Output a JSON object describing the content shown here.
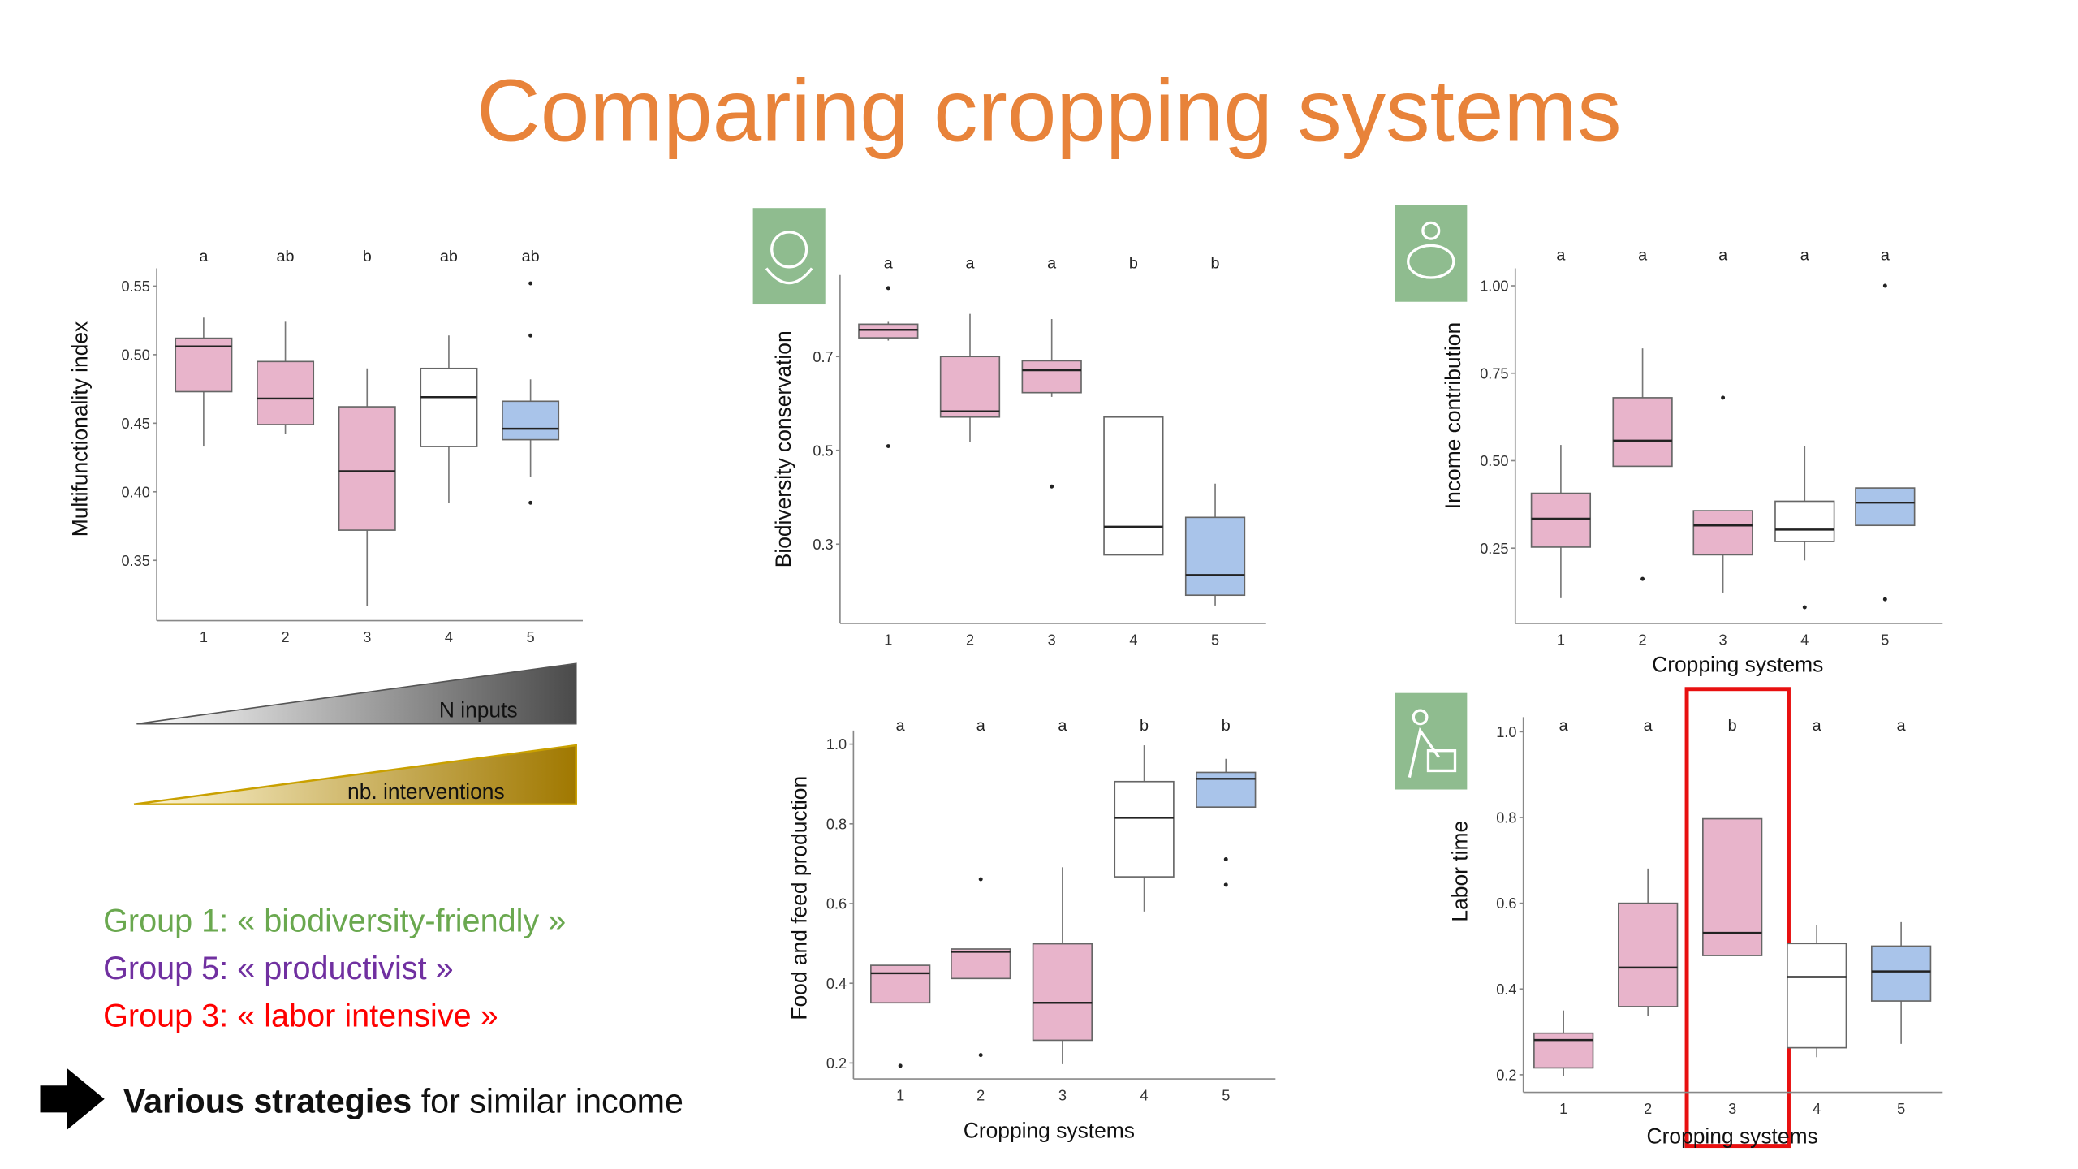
{
  "title": "Comparing cropping systems",
  "trends": [
    "N inputs",
    "nb. interventions"
  ],
  "groups": [
    {
      "text": "Group 1: « biodiversity-friendly »",
      "color": "#6aa84f"
    },
    {
      "text": "Group 5: « productivist »",
      "color": "#7030a0"
    },
    {
      "text": "Group 3: « labor intensive »",
      "color": "#ff0000"
    }
  ],
  "conclusion": {
    "bold": "Various strategies",
    "rest": " for similar income"
  },
  "chart_data": [
    {
      "type": "box",
      "y_label": "Multifunctionality index",
      "categories": [
        "1",
        "2",
        "3",
        "4",
        "5"
      ],
      "letters": [
        "a",
        "ab",
        "b",
        "ab",
        "ab"
      ],
      "ylim": [
        0.306,
        0.563
      ],
      "yticks": [
        0.35,
        {
          "value": 0.4,
          "label": "0.40"
        },
        0.45,
        {
          "value": 0.5,
          "label": "0.50"
        },
        0.55
      ],
      "boxes": [
        {
          "color": "#e8b4cb",
          "low": 0.433,
          "q1": 0.473,
          "median": 0.506,
          "q3": 0.512,
          "high": 0.527,
          "outliers": []
        },
        {
          "color": "#e8b4cb",
          "low": 0.442,
          "q1": 0.449,
          "median": 0.468,
          "q3": 0.495,
          "high": 0.524,
          "outliers": []
        },
        {
          "color": "#e8b4cb",
          "low": 0.317,
          "q1": 0.372,
          "median": 0.415,
          "q3": 0.462,
          "high": 0.49,
          "outliers": []
        },
        {
          "color": "#ffffff",
          "low": 0.392,
          "q1": 0.433,
          "median": 0.469,
          "q3": 0.49,
          "high": 0.514,
          "outliers": []
        },
        {
          "color": "#a9c4ea",
          "low": 0.411,
          "q1": 0.438,
          "median": 0.446,
          "q3": 0.466,
          "high": 0.482,
          "outliers": [
            0.552,
            0.514,
            0.392
          ]
        }
      ]
    },
    {
      "type": "box",
      "y_label": "Biodiversity conservation",
      "categories": [
        "1",
        "2",
        "3",
        "4",
        "5"
      ],
      "letters": [
        "a",
        "a",
        "a",
        "b",
        "b"
      ],
      "ylim": [
        0.131,
        0.874
      ],
      "yticks": [
        0.3,
        0.5,
        0.7
      ],
      "boxes": [
        {
          "color": "#e8b4cb",
          "low": 0.734,
          "q1": 0.74,
          "median": 0.757,
          "q3": 0.769,
          "high": 0.774,
          "outliers": [
            0.846,
            0.509
          ]
        },
        {
          "color": "#e8b4cb",
          "low": 0.517,
          "q1": 0.571,
          "median": 0.583,
          "q3": 0.7,
          "high": 0.791,
          "outliers": []
        },
        {
          "color": "#e8b4cb",
          "low": 0.614,
          "q1": 0.623,
          "median": 0.671,
          "q3": 0.691,
          "high": 0.78,
          "outliers": [
            0.423
          ]
        },
        {
          "color": "#ffffff",
          "low": 0.277,
          "q1": 0.277,
          "median": 0.337,
          "q3": 0.571,
          "high": 0.571,
          "outliers": []
        },
        {
          "color": "#a9c4ea",
          "low": 0.169,
          "q1": 0.191,
          "median": 0.234,
          "q3": 0.357,
          "high": 0.429,
          "outliers": []
        }
      ]
    },
    {
      "type": "box",
      "y_label": "Income contribution",
      "x_label": "Cropping systems",
      "categories": [
        "1",
        "2",
        "3",
        "4",
        "5"
      ],
      "letters": [
        "a",
        "a",
        "a",
        "a",
        "a"
      ],
      "ylim": [
        0.035,
        1.05
      ],
      "yticks": [
        0.25,
        {
          "value": 0.5,
          "label": "0.50"
        },
        0.75,
        {
          "value": 1,
          "label": "1.00"
        }
      ],
      "boxes": [
        {
          "color": "#e8b4cb",
          "low": 0.107,
          "q1": 0.253,
          "median": 0.334,
          "q3": 0.407,
          "high": 0.545,
          "outliers": []
        },
        {
          "color": "#e8b4cb",
          "low": 0.484,
          "q1": 0.484,
          "median": 0.557,
          "q3": 0.68,
          "high": 0.821,
          "outliers": [
            0.162
          ]
        },
        {
          "color": "#e8b4cb",
          "low": 0.123,
          "q1": 0.231,
          "median": 0.315,
          "q3": 0.357,
          "high": 0.357,
          "outliers": [
            0.68
          ]
        },
        {
          "color": "#ffffff",
          "low": 0.215,
          "q1": 0.269,
          "median": 0.303,
          "q3": 0.384,
          "high": 0.541,
          "outliers": [
            0.081
          ]
        },
        {
          "color": "#a9c4ea",
          "low": 0.315,
          "q1": 0.315,
          "median": 0.38,
          "q3": 0.422,
          "high": 0.422,
          "outliers": [
            1.0,
            0.104
          ]
        }
      ]
    },
    {
      "type": "box",
      "y_label": "Food and feed production",
      "x_label": "Cropping systems",
      "categories": [
        "1",
        "2",
        "3",
        "4",
        "5"
      ],
      "letters": [
        "a",
        "a",
        "a",
        "b",
        "b"
      ],
      "ylim": [
        0.16,
        1.034
      ],
      "yticks": [
        0.2,
        0.4,
        0.6,
        0.8,
        {
          "value": 1,
          "label": "1.0"
        }
      ],
      "boxes": [
        {
          "color": "#e8b4cb",
          "low": 0.351,
          "q1": 0.351,
          "median": 0.425,
          "q3": 0.445,
          "high": 0.445,
          "outliers": [
            0.193
          ]
        },
        {
          "color": "#e8b4cb",
          "low": 0.412,
          "q1": 0.412,
          "median": 0.479,
          "q3": 0.486,
          "high": 0.486,
          "outliers": [
            0.661,
            0.22
          ]
        },
        {
          "color": "#e8b4cb",
          "low": 0.197,
          "q1": 0.257,
          "median": 0.351,
          "q3": 0.499,
          "high": 0.691,
          "outliers": []
        },
        {
          "color": "#ffffff",
          "low": 0.58,
          "q1": 0.667,
          "median": 0.815,
          "q3": 0.906,
          "high": 0.997,
          "outliers": []
        },
        {
          "color": "#a9c4ea",
          "low": 0.842,
          "q1": 0.842,
          "median": 0.913,
          "q3": 0.929,
          "high": 0.963,
          "outliers": [
            0.711,
            0.647
          ]
        }
      ]
    },
    {
      "type": "box",
      "y_label": "Labor time",
      "x_label": "Cropping systems",
      "categories": [
        "1",
        "2",
        "3",
        "4",
        "5"
      ],
      "letters": [
        "a",
        "a",
        "b",
        "a",
        "a"
      ],
      "ylim": [
        0.159,
        1.034
      ],
      "yticks": [
        0.2,
        0.4,
        0.6,
        0.8,
        {
          "value": 1,
          "label": "1.0"
        }
      ],
      "boxes": [
        {
          "color": "#e8b4cb",
          "low": 0.197,
          "q1": 0.216,
          "median": 0.281,
          "q3": 0.297,
          "high": 0.35,
          "outliers": []
        },
        {
          "color": "#e8b4cb",
          "low": 0.338,
          "q1": 0.359,
          "median": 0.45,
          "q3": 0.6,
          "high": 0.681,
          "outliers": []
        },
        {
          "color": "#e8b4cb",
          "low": 0.478,
          "q1": 0.478,
          "median": 0.531,
          "q3": 0.797,
          "high": 0.797,
          "outliers": []
        },
        {
          "color": "#ffffff",
          "low": 0.241,
          "q1": 0.263,
          "median": 0.428,
          "q3": 0.506,
          "high": 0.55,
          "outliers": []
        },
        {
          "color": "#a9c4ea",
          "low": 0.272,
          "q1": 0.372,
          "median": 0.441,
          "q3": 0.5,
          "high": 0.556,
          "outliers": []
        }
      ]
    }
  ]
}
